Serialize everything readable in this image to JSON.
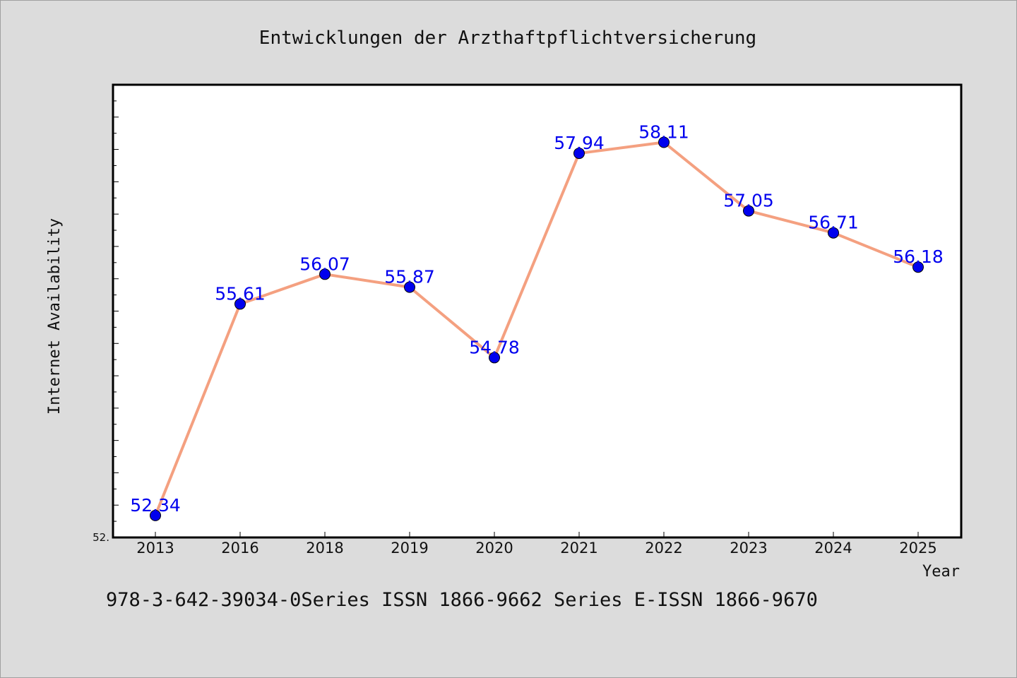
{
  "chart_data": {
    "type": "line",
    "title": "Entwicklungen der Arzthaftpflichtversicherung",
    "xlabel": "Year",
    "ylabel": "Internet Availability",
    "categories": [
      "2013",
      "2016",
      "2018",
      "2019",
      "2020",
      "2021",
      "2022",
      "2023",
      "2024",
      "2025"
    ],
    "series": [
      {
        "values": [
          52.34,
          55.61,
          56.07,
          55.87,
          54.78,
          57.94,
          58.11,
          57.05,
          56.71,
          56.18
        ],
        "labels": [
          "52.34",
          "55.61",
          "56.07",
          "55.87",
          "54.78",
          "57.94",
          "58.11",
          "57.05",
          "56.71",
          "56.18"
        ],
        "line_color": "#f4a080",
        "marker_color": "#0000ee"
      }
    ],
    "ylim": [
      52.0,
      59.0
    ],
    "y_tick_label_min": "52.",
    "grid": false,
    "legend": "none"
  },
  "footnote": "978-3-642-39034-0Series ISSN 1866-9662 Series E-ISSN 1866-9670"
}
